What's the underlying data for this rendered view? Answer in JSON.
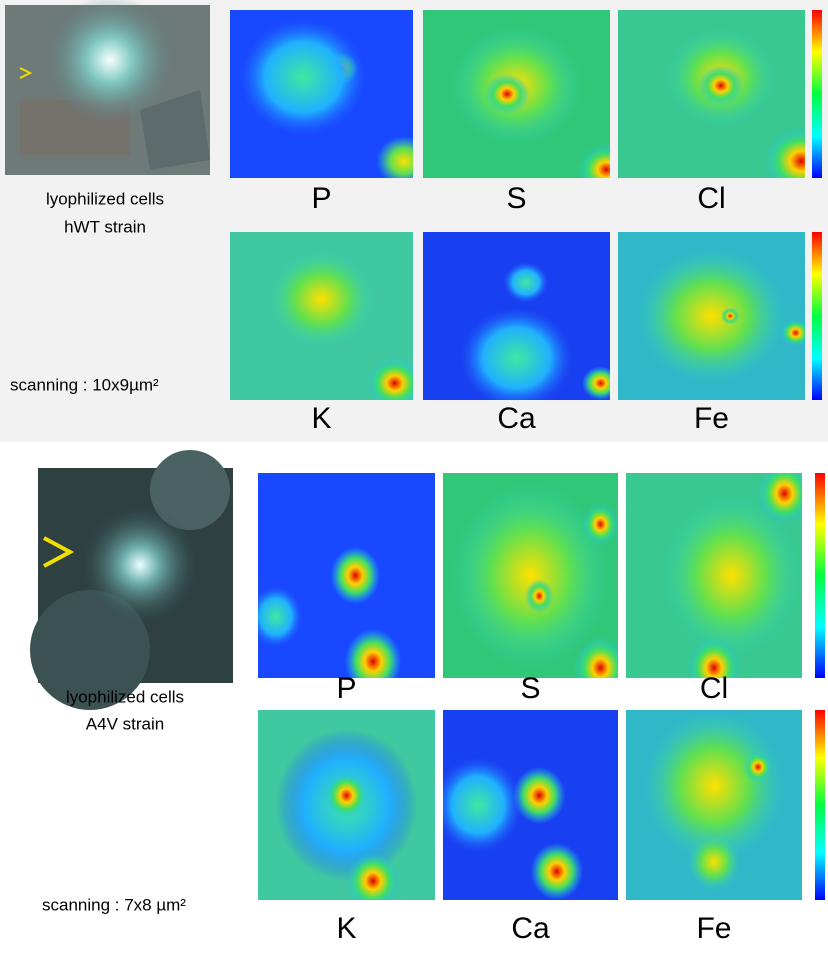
{
  "panels": [
    {
      "caption": [
        "lyophilized cells",
        "hWT strain"
      ],
      "scanning": "scanning : 10x9µm²",
      "elements": [
        "P",
        "S",
        "Cl",
        "K",
        "Ca",
        "Fe"
      ]
    },
    {
      "caption": [
        "lyophilized cells",
        "A4V strain"
      ],
      "scanning": "scanning : 7x8 µm²",
      "elements": [
        "P",
        "S",
        "Cl",
        "K",
        "Ca",
        "Fe"
      ]
    }
  ]
}
